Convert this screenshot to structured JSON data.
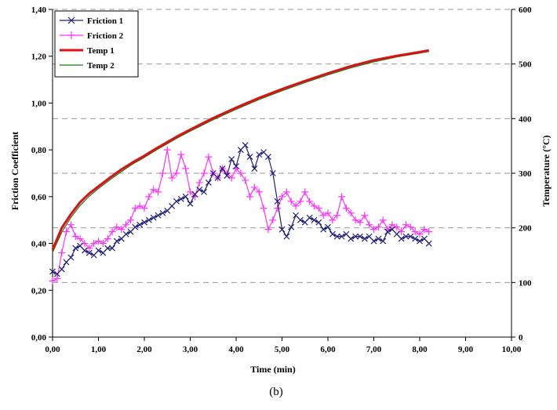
{
  "caption": "(b)",
  "chart_data": {
    "type": "line",
    "title": "",
    "xlabel": "Time (min)",
    "ylabel_left": "Friction Coefficient",
    "ylabel_right": "Temperature (°C)",
    "xlim": [
      0,
      10
    ],
    "ylim_left": [
      0,
      1.4
    ],
    "ylim_right": [
      0,
      600
    ],
    "x_ticks": [
      "0,00",
      "1,00",
      "2,00",
      "3,00",
      "4,00",
      "5,00",
      "6,00",
      "7,00",
      "8,00",
      "9,00",
      "10,00"
    ],
    "y_left_ticks": [
      "0,00",
      "0,20",
      "0,40",
      "0,60",
      "0,80",
      "1,00",
      "1,20",
      "1,40"
    ],
    "y_right_ticks": [
      "0",
      "100",
      "200",
      "300",
      "400",
      "500",
      "600"
    ],
    "grid": "horizontal dashed",
    "legend_position": "top-left",
    "colors": {
      "Friction 1": "#1f1f7a",
      "Friction 2": "#ff33ff",
      "Temp 1": "#dd1111",
      "Temp 2": "#1a7a1a"
    },
    "series": [
      {
        "name": "Friction 1",
        "axis": "left",
        "marker": "x",
        "x": [
          0.0,
          0.1,
          0.2,
          0.3,
          0.4,
          0.5,
          0.6,
          0.7,
          0.8,
          0.9,
          1.0,
          1.1,
          1.2,
          1.3,
          1.4,
          1.5,
          1.6,
          1.7,
          1.8,
          1.9,
          2.0,
          2.1,
          2.2,
          2.3,
          2.4,
          2.5,
          2.6,
          2.7,
          2.8,
          2.9,
          3.0,
          3.1,
          3.2,
          3.3,
          3.4,
          3.5,
          3.6,
          3.7,
          3.8,
          3.9,
          4.0,
          4.1,
          4.2,
          4.3,
          4.4,
          4.5,
          4.6,
          4.7,
          4.8,
          4.9,
          5.0,
          5.1,
          5.2,
          5.3,
          5.4,
          5.5,
          5.6,
          5.7,
          5.8,
          5.9,
          6.0,
          6.1,
          6.2,
          6.3,
          6.4,
          6.5,
          6.6,
          6.7,
          6.8,
          6.9,
          7.0,
          7.1,
          7.2,
          7.3,
          7.4,
          7.5,
          7.6,
          7.7,
          7.8,
          7.9,
          8.0,
          8.1,
          8.2
        ],
        "y": [
          0.28,
          0.27,
          0.29,
          0.32,
          0.34,
          0.38,
          0.39,
          0.37,
          0.36,
          0.35,
          0.37,
          0.36,
          0.38,
          0.38,
          0.41,
          0.42,
          0.44,
          0.45,
          0.47,
          0.48,
          0.49,
          0.5,
          0.51,
          0.52,
          0.53,
          0.54,
          0.56,
          0.58,
          0.59,
          0.6,
          0.57,
          0.61,
          0.63,
          0.62,
          0.66,
          0.7,
          0.68,
          0.72,
          0.69,
          0.76,
          0.73,
          0.8,
          0.82,
          0.77,
          0.72,
          0.78,
          0.79,
          0.77,
          0.7,
          0.58,
          0.46,
          0.43,
          0.47,
          0.52,
          0.5,
          0.49,
          0.51,
          0.5,
          0.49,
          0.46,
          0.47,
          0.44,
          0.43,
          0.43,
          0.44,
          0.42,
          0.43,
          0.43,
          0.42,
          0.43,
          0.41,
          0.42,
          0.41,
          0.45,
          0.46,
          0.44,
          0.42,
          0.43,
          0.43,
          0.42,
          0.41,
          0.42,
          0.4
        ]
      },
      {
        "name": "Friction 2",
        "axis": "left",
        "marker": "+",
        "x": [
          0.0,
          0.1,
          0.2,
          0.3,
          0.4,
          0.5,
          0.6,
          0.7,
          0.8,
          0.9,
          1.0,
          1.1,
          1.2,
          1.3,
          1.4,
          1.5,
          1.6,
          1.7,
          1.8,
          1.9,
          2.0,
          2.1,
          2.2,
          2.3,
          2.4,
          2.5,
          2.6,
          2.7,
          2.8,
          2.9,
          3.0,
          3.1,
          3.2,
          3.3,
          3.4,
          3.5,
          3.6,
          3.7,
          3.8,
          3.9,
          4.0,
          4.1,
          4.2,
          4.3,
          4.4,
          4.5,
          4.6,
          4.7,
          4.8,
          4.9,
          5.0,
          5.1,
          5.2,
          5.3,
          5.4,
          5.5,
          5.6,
          5.7,
          5.8,
          5.9,
          6.0,
          6.1,
          6.2,
          6.3,
          6.4,
          6.5,
          6.6,
          6.7,
          6.8,
          6.9,
          7.0,
          7.1,
          7.2,
          7.3,
          7.4,
          7.5,
          7.6,
          7.7,
          7.8,
          7.9,
          8.0,
          8.1,
          8.2
        ],
        "y": [
          0.24,
          0.25,
          0.36,
          0.45,
          0.48,
          0.43,
          0.42,
          0.4,
          0.38,
          0.4,
          0.41,
          0.4,
          0.42,
          0.45,
          0.47,
          0.46,
          0.48,
          0.5,
          0.55,
          0.56,
          0.55,
          0.6,
          0.63,
          0.62,
          0.7,
          0.8,
          0.68,
          0.7,
          0.78,
          0.72,
          0.62,
          0.6,
          0.66,
          0.7,
          0.77,
          0.7,
          0.68,
          0.72,
          0.7,
          0.68,
          0.72,
          0.7,
          0.67,
          0.6,
          0.64,
          0.62,
          0.55,
          0.46,
          0.5,
          0.55,
          0.6,
          0.62,
          0.58,
          0.56,
          0.58,
          0.62,
          0.58,
          0.56,
          0.55,
          0.52,
          0.53,
          0.5,
          0.52,
          0.6,
          0.55,
          0.53,
          0.5,
          0.49,
          0.52,
          0.48,
          0.46,
          0.47,
          0.5,
          0.46,
          0.48,
          0.47,
          0.45,
          0.48,
          0.47,
          0.45,
          0.44,
          0.46,
          0.45
        ]
      },
      {
        "name": "Temp 1",
        "axis": "right",
        "marker": "none",
        "x": [
          0.0,
          0.2,
          0.4,
          0.6,
          0.8,
          1.0,
          1.25,
          1.5,
          1.75,
          2.0,
          2.25,
          2.5,
          2.75,
          3.0,
          3.5,
          4.0,
          4.5,
          5.0,
          5.5,
          6.0,
          6.5,
          7.0,
          7.5,
          8.0,
          8.2
        ],
        "y": [
          160,
          200,
          225,
          247,
          263,
          276,
          292,
          307,
          320,
          332,
          345,
          357,
          369,
          380,
          401,
          420,
          438,
          454,
          469,
          483,
          496,
          507,
          515,
          522,
          525
        ]
      },
      {
        "name": "Temp 2",
        "axis": "right",
        "marker": "none",
        "x": [
          0.0,
          0.2,
          0.4,
          0.6,
          0.8,
          1.0,
          1.25,
          1.5,
          1.75,
          2.0,
          2.25,
          2.5,
          2.75,
          3.0,
          3.5,
          4.0,
          4.5,
          5.0,
          5.5,
          6.0,
          6.5,
          7.0,
          7.5,
          8.0,
          8.2
        ],
        "y": [
          155,
          192,
          219,
          241,
          258,
          272,
          288,
          303,
          317,
          329,
          342,
          354,
          366,
          377,
          398,
          417,
          435,
          451,
          466,
          480,
          493,
          504,
          513,
          520,
          523
        ]
      }
    ]
  }
}
